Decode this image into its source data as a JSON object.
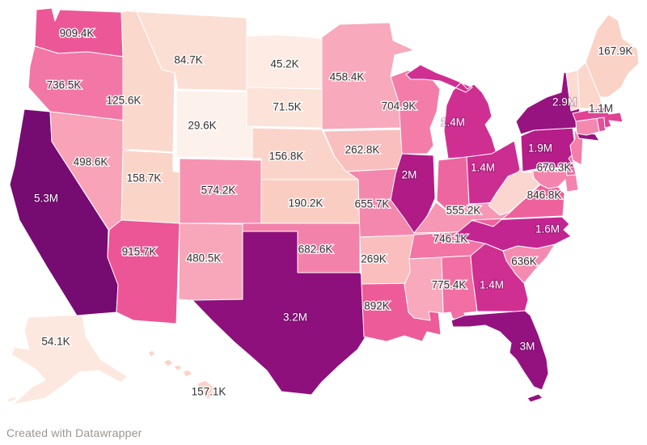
{
  "footer": {
    "attribution": "Created with Datawrapper"
  },
  "chart_data": {
    "type": "choropleth",
    "geography": "United States, state level (Alaska and Hawaii insets)",
    "legend": "none visible",
    "value_format": "abbreviated counts (K = thousand, M = million)",
    "color_scale": {
      "low": "#fdf1ec",
      "high": "#760b72",
      "style": "sequential pink-purple"
    },
    "label_text_colors": {
      "dark": "#333333",
      "light": "#ffffff"
    },
    "states": [
      {
        "id": "AK",
        "name": "Alaska",
        "label": "54.1K",
        "value": 54100,
        "color": "#fde8e0",
        "text": "dark"
      },
      {
        "id": "HI",
        "name": "Hawaii",
        "label": "157.1K",
        "value": 157100,
        "color": "#fbd4c9",
        "text": "dark"
      },
      {
        "id": "WA",
        "name": "Washington",
        "label": "909.4K",
        "value": 909400,
        "color": "#ec5797",
        "text": "dark"
      },
      {
        "id": "OR",
        "name": "Oregon",
        "label": "736.5K",
        "value": 736500,
        "color": "#f277a6",
        "text": "dark"
      },
      {
        "id": "CA",
        "name": "California",
        "label": "5.3M",
        "value": 5300000,
        "color": "#760b72",
        "text": "light"
      },
      {
        "id": "NV",
        "name": "Nevada",
        "label": "498.6K",
        "value": 498600,
        "color": "#f8a3b8",
        "text": "dark"
      },
      {
        "id": "ID",
        "name": "Idaho",
        "label": "125.6K",
        "value": 125600,
        "color": "#fbd8cc",
        "text": "dark"
      },
      {
        "id": "MT",
        "name": "Montana",
        "label": "84.7K",
        "value": 84700,
        "color": "#fcdfd4",
        "text": "dark"
      },
      {
        "id": "WY",
        "name": "Wyoming",
        "label": "29.6K",
        "value": 29600,
        "color": "#fdf1ec",
        "text": "dark"
      },
      {
        "id": "UT",
        "name": "Utah",
        "label": "158.7K",
        "value": 158700,
        "color": "#fbd4c8",
        "text": "dark"
      },
      {
        "id": "CO",
        "name": "Colorado",
        "label": "574.2K",
        "value": 574200,
        "color": "#f693b3",
        "text": "dark"
      },
      {
        "id": "AZ",
        "name": "Arizona",
        "label": "915.7K",
        "value": 915700,
        "color": "#ec5596",
        "text": "dark"
      },
      {
        "id": "NM",
        "name": "New Mexico",
        "label": "480.5K",
        "value": 480500,
        "color": "#f8a6b9",
        "text": "dark"
      },
      {
        "id": "ND",
        "name": "North Dakota",
        "label": "45.2K",
        "value": 45200,
        "color": "#fdebe4",
        "text": "dark"
      },
      {
        "id": "SD",
        "name": "South Dakota",
        "label": "71.5K",
        "value": 71500,
        "color": "#fce3d9",
        "text": "dark"
      },
      {
        "id": "NE",
        "name": "Nebraska",
        "label": "156.8K",
        "value": 156800,
        "color": "#fbd4c9",
        "text": "dark"
      },
      {
        "id": "KS",
        "name": "Kansas",
        "label": "190.2K",
        "value": 190200,
        "color": "#facdc2",
        "text": "dark"
      },
      {
        "id": "OK",
        "name": "Oklahoma",
        "label": "682.6K",
        "value": 682600,
        "color": "#f382ab",
        "text": "dark"
      },
      {
        "id": "TX",
        "name": "Texas",
        "label": "3.2M",
        "value": 3200000,
        "color": "#8e107c",
        "text": "light"
      },
      {
        "id": "MN",
        "name": "Minnesota",
        "label": "458.4K",
        "value": 458400,
        "color": "#f8a9bb",
        "text": "dark"
      },
      {
        "id": "IA",
        "name": "Iowa",
        "label": "262.8K",
        "value": 262800,
        "color": "#f9bfbe",
        "text": "dark"
      },
      {
        "id": "MO",
        "name": "Missouri",
        "label": "655.7K",
        "value": 655700,
        "color": "#f487ae",
        "text": "dark"
      },
      {
        "id": "AR",
        "name": "Arkansas",
        "label": "269K",
        "value": 269000,
        "color": "#f9bebd",
        "text": "dark"
      },
      {
        "id": "LA",
        "name": "Louisiana",
        "label": "892K",
        "value": 892000,
        "color": "#ed5b98",
        "text": "dark"
      },
      {
        "id": "WI",
        "name": "Wisconsin",
        "label": "704.9K",
        "value": 704900,
        "color": "#f37da8",
        "text": "dark"
      },
      {
        "id": "IL",
        "name": "Illinois",
        "label": "2M",
        "value": 2000000,
        "color": "#b01b86",
        "text": "light"
      },
      {
        "id": "MI",
        "name": "Michigan",
        "label": "1.4M",
        "value": 1400000,
        "color": "#d02f92",
        "text": "light"
      },
      {
        "id": "IN",
        "name": "Indiana",
        "color": "#ee669f"
      },
      {
        "id": "OH",
        "name": "Ohio",
        "label": "1.4M",
        "value": 1400000,
        "color": "#cc2d91",
        "text": "light"
      },
      {
        "id": "KY",
        "name": "Kentucky",
        "label": "555.2K",
        "value": 555200,
        "color": "#f697b5",
        "text": "dark"
      },
      {
        "id": "TN",
        "name": "Tennessee",
        "label": "746.1K",
        "value": 746100,
        "color": "#f275a5",
        "text": "dark"
      },
      {
        "id": "MS",
        "name": "Mississippi",
        "color": "#f8a9bc"
      },
      {
        "id": "AL",
        "name": "Alabama",
        "label": "775.4K",
        "value": 775400,
        "color": "#f16fa2",
        "text": "dark"
      },
      {
        "id": "GA",
        "name": "Georgia",
        "label": "1.4M",
        "value": 1400000,
        "color": "#d02f92",
        "text": "light"
      },
      {
        "id": "FL",
        "name": "Florida",
        "label": "3M",
        "value": 3000000,
        "color": "#94127f",
        "text": "light"
      },
      {
        "id": "SC",
        "name": "South Carolina",
        "label": "636K",
        "value": 636000,
        "color": "#f48ab0",
        "text": "dark"
      },
      {
        "id": "NC",
        "name": "North Carolina",
        "label": "1.6M",
        "value": 1600000,
        "color": "#c32590",
        "text": "light"
      },
      {
        "id": "VA",
        "name": "Virginia",
        "label": "846.8K",
        "value": 846800,
        "color": "#ee629c",
        "text": "dark"
      },
      {
        "id": "WV",
        "name": "West Virginia",
        "color": "#fbd5cf"
      },
      {
        "id": "MD",
        "name": "Maryland",
        "label": "670.3K",
        "value": 670300,
        "color": "#f484ad",
        "text": "dark"
      },
      {
        "id": "DE",
        "name": "Delaware",
        "color": "#ef68a1"
      },
      {
        "id": "PA",
        "name": "Pennsylvania",
        "label": "1.9M",
        "value": 1900000,
        "color": "#b61d88",
        "text": "light"
      },
      {
        "id": "NJ",
        "name": "New Jersey",
        "color": "#f37ea9"
      },
      {
        "id": "NY",
        "name": "New York",
        "label": "2.9M",
        "value": 2900000,
        "color": "#971380",
        "text": "light"
      },
      {
        "id": "CT",
        "name": "Connecticut",
        "color": "#f489af"
      },
      {
        "id": "RI",
        "name": "Rhode Island",
        "color": "#e84f9b"
      },
      {
        "id": "MA",
        "name": "Massachusetts",
        "label": "1.1M",
        "value": 1100000,
        "color": "#e04394",
        "text": "dark"
      },
      {
        "id": "VT",
        "name": "Vermont",
        "color": "#fcdcd2"
      },
      {
        "id": "NH",
        "name": "New Hampshire",
        "color": "#fbd6ca"
      },
      {
        "id": "ME",
        "name": "Maine",
        "label": "167.9K",
        "value": 167900,
        "color": "#fbd2c6",
        "text": "dark"
      }
    ]
  }
}
